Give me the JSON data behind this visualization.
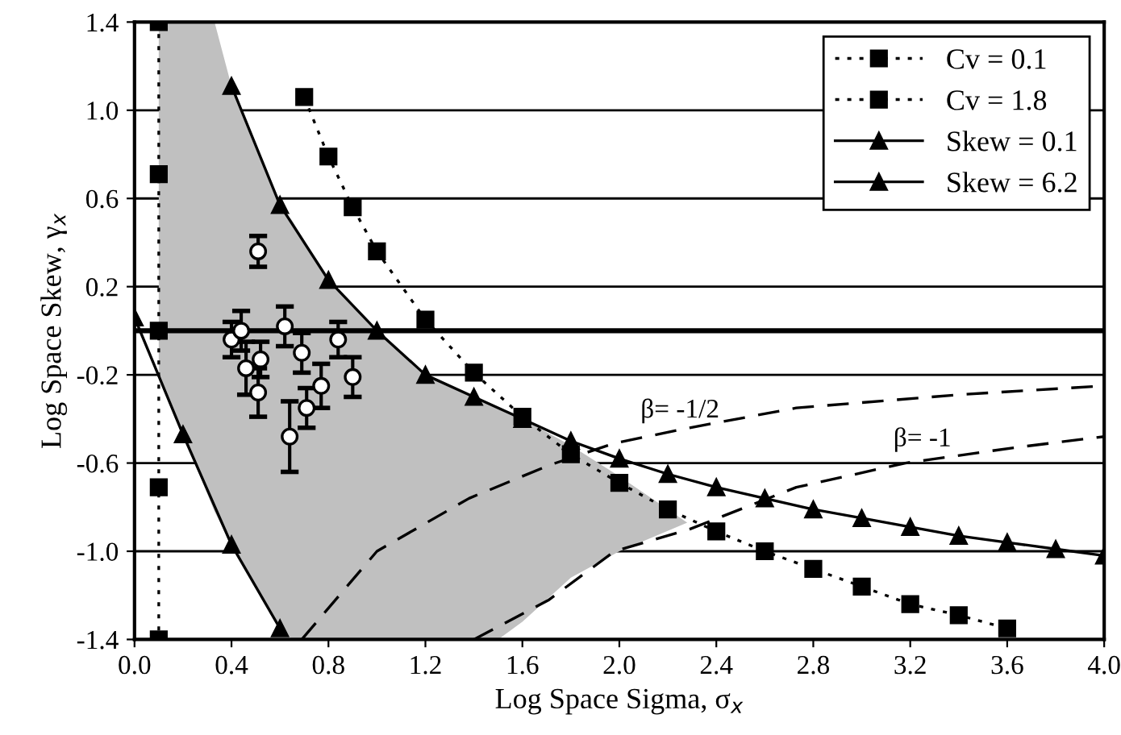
{
  "chart_data": {
    "type": "line",
    "xlabel": "Log Space Sigma, σ$_{x}$",
    "ylabel": "Log Space Skew, γ$_{x}$",
    "xlim": [
      0.0,
      4.0
    ],
    "ylim": [
      -1.4,
      1.4
    ],
    "xticks": [
      {
        "value": 0.0,
        "label": "0.0"
      },
      0.4,
      0.8,
      1.2,
      1.6,
      {
        "value": 2.0,
        "label": "2.0"
      },
      2.4,
      2.8,
      3.2,
      3.6,
      {
        "value": 4.0,
        "label": "4.0"
      }
    ],
    "yticks": [
      -1.4,
      {
        "value": -1.0,
        "label": "-1.0"
      },
      -0.6,
      -0.2,
      0.2,
      0.6,
      {
        "value": 1.0,
        "label": "1.0"
      },
      1.4
    ],
    "grid": "y",
    "legend": "top right",
    "ref_lines": [
      {
        "axis": "y",
        "value": 0.0,
        "color": "#000000"
      }
    ],
    "annotations": [
      {
        "text": "β= -1/2",
        "x": 2.25,
        "y": -0.45
      },
      {
        "text": "β= -1",
        "x": 3.25,
        "y": -0.58
      }
    ],
    "series": [
      {
        "color": "#c0c0c0",
        "x": [
          0.1,
          0.2,
          0.33,
          0.4,
          0.6,
          0.65,
          0.8,
          1.0,
          1.2,
          1.4,
          1.5,
          1.6,
          1.8,
          2.0,
          2.28
        ],
        "values": [
          null,
          null,
          null,
          null,
          null,
          null,
          null,
          null,
          null,
          null,
          null,
          null,
          null,
          null,
          null
        ],
        "upper": [
          1.4,
          1.4,
          1.4,
          1.11,
          0.57,
          0.5,
          0.23,
          0.0,
          -0.2,
          -0.3,
          -0.35,
          -0.4,
          -0.52,
          -0.66,
          -0.87
        ],
        "lower": [
          -0.2,
          -0.47,
          -0.82,
          -0.97,
          -1.35,
          -1.4,
          -1.4,
          -1.4,
          -1.4,
          -1.4,
          -1.4,
          -1.32,
          -1.12,
          -1.0,
          -0.87
        ]
      },
      {
        "color": "#000000",
        "line_style": "dashed",
        "marker": "none",
        "x": [
          0.69,
          1.0,
          1.38,
          1.71,
          1.98,
          2.29,
          2.73,
          3.4,
          4.0
        ],
        "values": [
          -1.4,
          -1.0,
          -0.76,
          -0.61,
          -0.51,
          -0.44,
          -0.35,
          -0.29,
          -0.25
        ]
      },
      {
        "color": "#000000",
        "line_style": "dashed",
        "marker": "none",
        "x": [
          1.4,
          1.71,
          1.98,
          2.29,
          2.73,
          3.18,
          3.63,
          4.0
        ],
        "values": [
          -1.4,
          -1.22,
          -1.0,
          -0.9,
          -0.71,
          -0.6,
          -0.53,
          -0.48
        ]
      },
      {
        "name": "Cv = 0.1",
        "color": "#000000",
        "line_style": "dotted",
        "marker": "square",
        "x": [
          0.1,
          0.1,
          0.1,
          0.1,
          0.1
        ],
        "values": [
          1.4,
          0.71,
          0.0,
          -0.71,
          -1.4
        ]
      },
      {
        "name": "Cv = 1.8",
        "color": "#000000",
        "line_style": "dotted",
        "marker": "square",
        "x": [
          0.7,
          0.8,
          0.9,
          1.0,
          1.2,
          1.4,
          1.6,
          1.8,
          2.0,
          2.2,
          2.4,
          2.6,
          2.8,
          3.0,
          3.2,
          3.4,
          3.6
        ],
        "values": [
          1.06,
          0.79,
          0.56,
          0.36,
          0.05,
          -0.19,
          -0.39,
          -0.56,
          -0.69,
          -0.81,
          -0.91,
          -1.0,
          -1.08,
          -1.16,
          -1.24,
          -1.29,
          -1.35
        ]
      },
      {
        "name": "Skew = 0.1",
        "color": "#000000",
        "line_style": "solid",
        "marker": "triangle",
        "x": [
          0.4,
          0.6,
          0.8,
          1.0,
          1.2,
          1.4,
          1.6,
          1.8,
          2.0,
          2.2,
          2.4,
          2.6,
          2.8,
          3.0,
          3.2,
          3.4,
          3.6,
          3.8,
          4.0
        ],
        "values": [
          1.11,
          0.57,
          0.23,
          0.0,
          -0.2,
          -0.3,
          -0.4,
          -0.5,
          -0.58,
          -0.65,
          -0.71,
          -0.76,
          -0.81,
          -0.85,
          -0.89,
          -0.93,
          -0.96,
          -0.99,
          -1.02
        ]
      },
      {
        "name": "Skew = 6.2",
        "color": "#000000",
        "line_style": "solid",
        "marker": "triangle",
        "x": [
          0.0,
          0.2,
          0.4,
          0.6
        ],
        "values": [
          0.06,
          -0.47,
          -0.97,
          -1.35
        ]
      },
      {
        "type": "scatter",
        "color": "#000000",
        "marker": "circle",
        "x": [
          0.4,
          0.44,
          0.46,
          0.51,
          0.51,
          0.52,
          0.62,
          0.64,
          0.69,
          0.71,
          0.77,
          0.84,
          0.9
        ],
        "values": [
          -0.04,
          0.0,
          -0.17,
          0.36,
          -0.28,
          -0.13,
          0.02,
          -0.48,
          -0.1,
          -0.35,
          -0.25,
          -0.04,
          -0.21
        ],
        "errors": [
          0.08,
          0.09,
          0.12,
          0.07,
          0.11,
          0.08,
          0.09,
          0.16,
          0.09,
          0.09,
          0.1,
          0.08,
          0.09
        ]
      }
    ]
  }
}
